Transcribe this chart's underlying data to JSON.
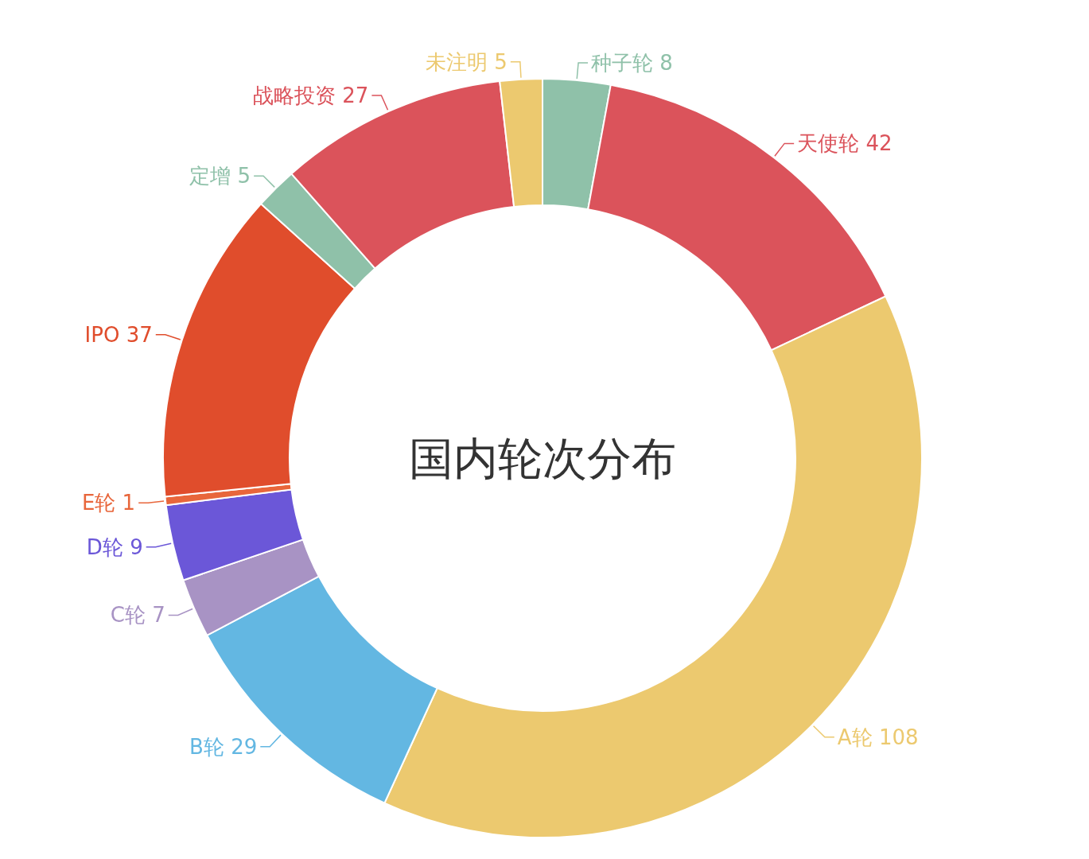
{
  "chart_data": {
    "type": "donut",
    "title": "国内轮次分布",
    "categories": [
      "种子轮",
      "天使轮",
      "A轮",
      "B轮",
      "C轮",
      "D轮",
      "E轮",
      "IPO",
      "定增",
      "战略投资",
      "未注明"
    ],
    "values": [
      8,
      42,
      108,
      29,
      7,
      9,
      1,
      37,
      5,
      27,
      5
    ],
    "colors": [
      "#8fc1a9",
      "#db535b",
      "#ecc96f",
      "#63b7e2",
      "#a893c4",
      "#6b57d8",
      "#e8663b",
      "#e04d2c",
      "#8fc1a9",
      "#db535b",
      "#ecc96f"
    ],
    "data_labels": true
  }
}
